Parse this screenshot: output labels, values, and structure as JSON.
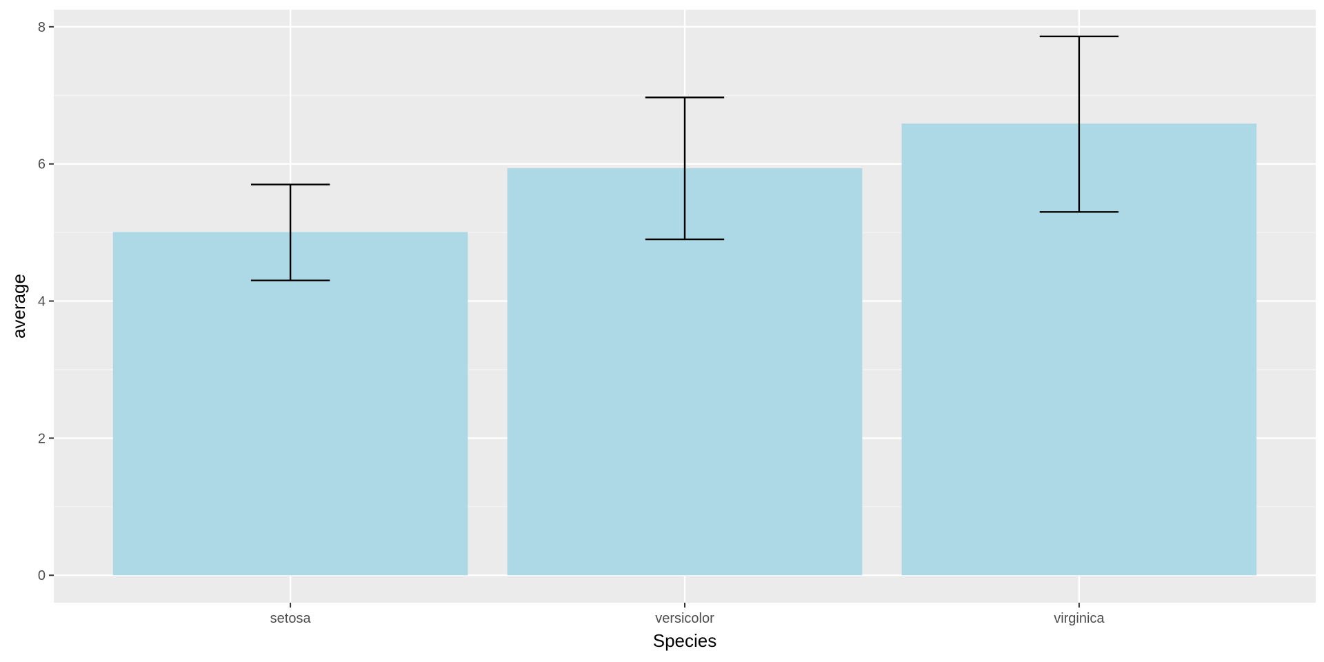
{
  "chart_data": {
    "type": "bar",
    "title": "",
    "xlabel": "Species",
    "ylabel": "average",
    "categories": [
      "setosa",
      "versicolor",
      "virginica"
    ],
    "values": [
      5.006,
      5.936,
      6.588
    ],
    "error_bars": {
      "lower": [
        4.3,
        4.9,
        5.3
      ],
      "upper": [
        5.7,
        6.97,
        7.86
      ]
    },
    "ylim": [
      -0.4,
      8.25
    ],
    "yticks": [
      0,
      2,
      4,
      6,
      8
    ],
    "ytick_labels": [
      "0",
      "2",
      "4",
      "6",
      "8"
    ],
    "grid": true,
    "legend": "none",
    "colors": {
      "bar_fill": "#add8e6",
      "panel_background": "#ebebeb",
      "grid_major": "#ffffff",
      "grid_minor": "#f5f5f5",
      "error_bar": "#000000",
      "tick_mark": "#333333"
    }
  }
}
